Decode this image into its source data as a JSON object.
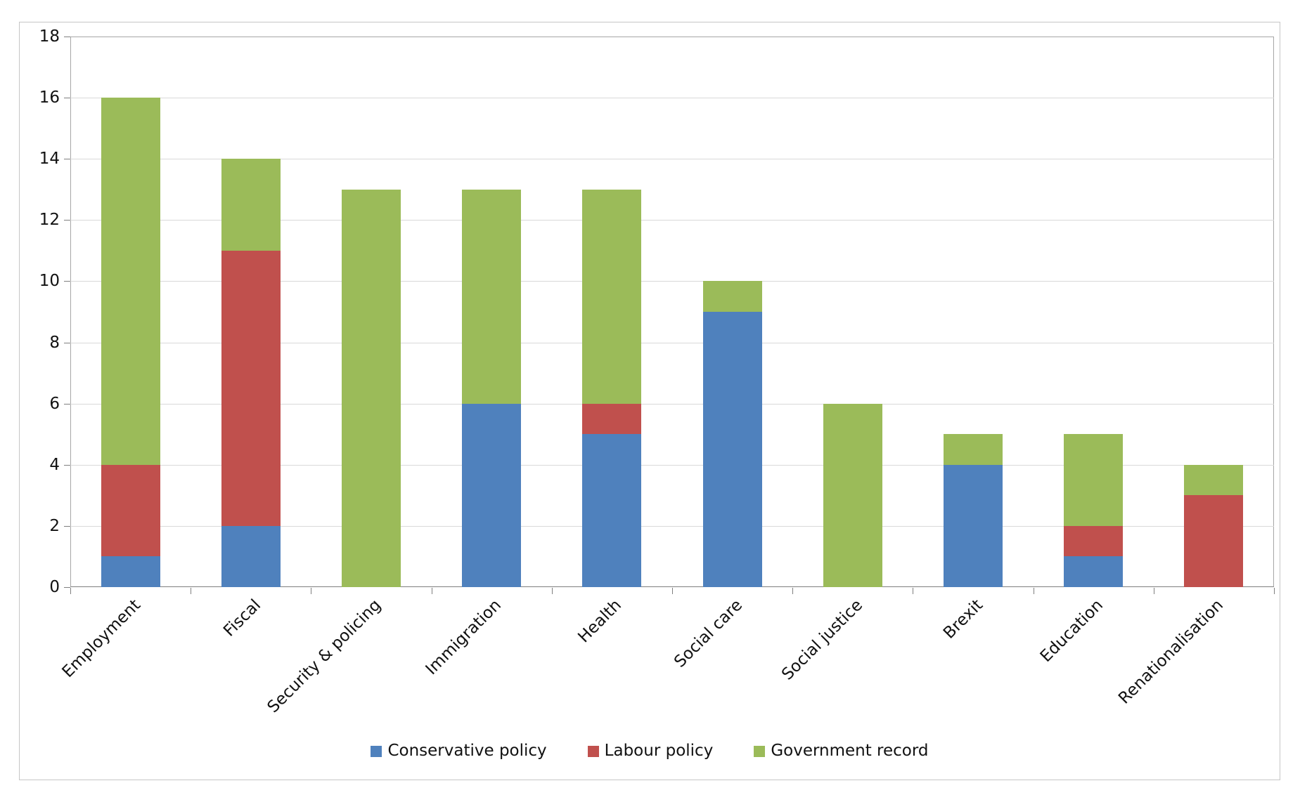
{
  "chart_data": {
    "type": "bar",
    "stacked": true,
    "title": "",
    "xlabel": "",
    "ylabel": "",
    "categories": [
      "Employment",
      "Fiscal",
      "Security & policing",
      "Immigration",
      "Health",
      "Social care",
      "Social justice",
      "Brexit",
      "Education",
      "Renationalisation"
    ],
    "series": [
      {
        "name": "Conservative policy",
        "color": "#4F81BD",
        "values": [
          1,
          2,
          0,
          6,
          5,
          9,
          0,
          4,
          1,
          0
        ]
      },
      {
        "name": "Labour policy",
        "color": "#C0504D",
        "values": [
          3,
          9,
          0,
          0,
          1,
          0,
          0,
          0,
          1,
          3
        ]
      },
      {
        "name": "Government record",
        "color": "#9BBB59",
        "values": [
          12,
          3,
          13,
          7,
          7,
          1,
          6,
          1,
          3,
          1
        ]
      }
    ],
    "totals": [
      16,
      14,
      13,
      13,
      13,
      10,
      6,
      5,
      5,
      4
    ],
    "ylim": [
      0,
      18
    ],
    "ytick_step": 2,
    "yticks": [
      0,
      2,
      4,
      6,
      8,
      10,
      12,
      14,
      16,
      18
    ],
    "grid": true,
    "legend_position": "bottom"
  },
  "colors": {
    "gridline": "#d9d9d9",
    "axis": "#7f7f7f",
    "plot_border": "#a6a6a6",
    "frame_border": "#c6c6c6",
    "background": "#ffffff"
  }
}
